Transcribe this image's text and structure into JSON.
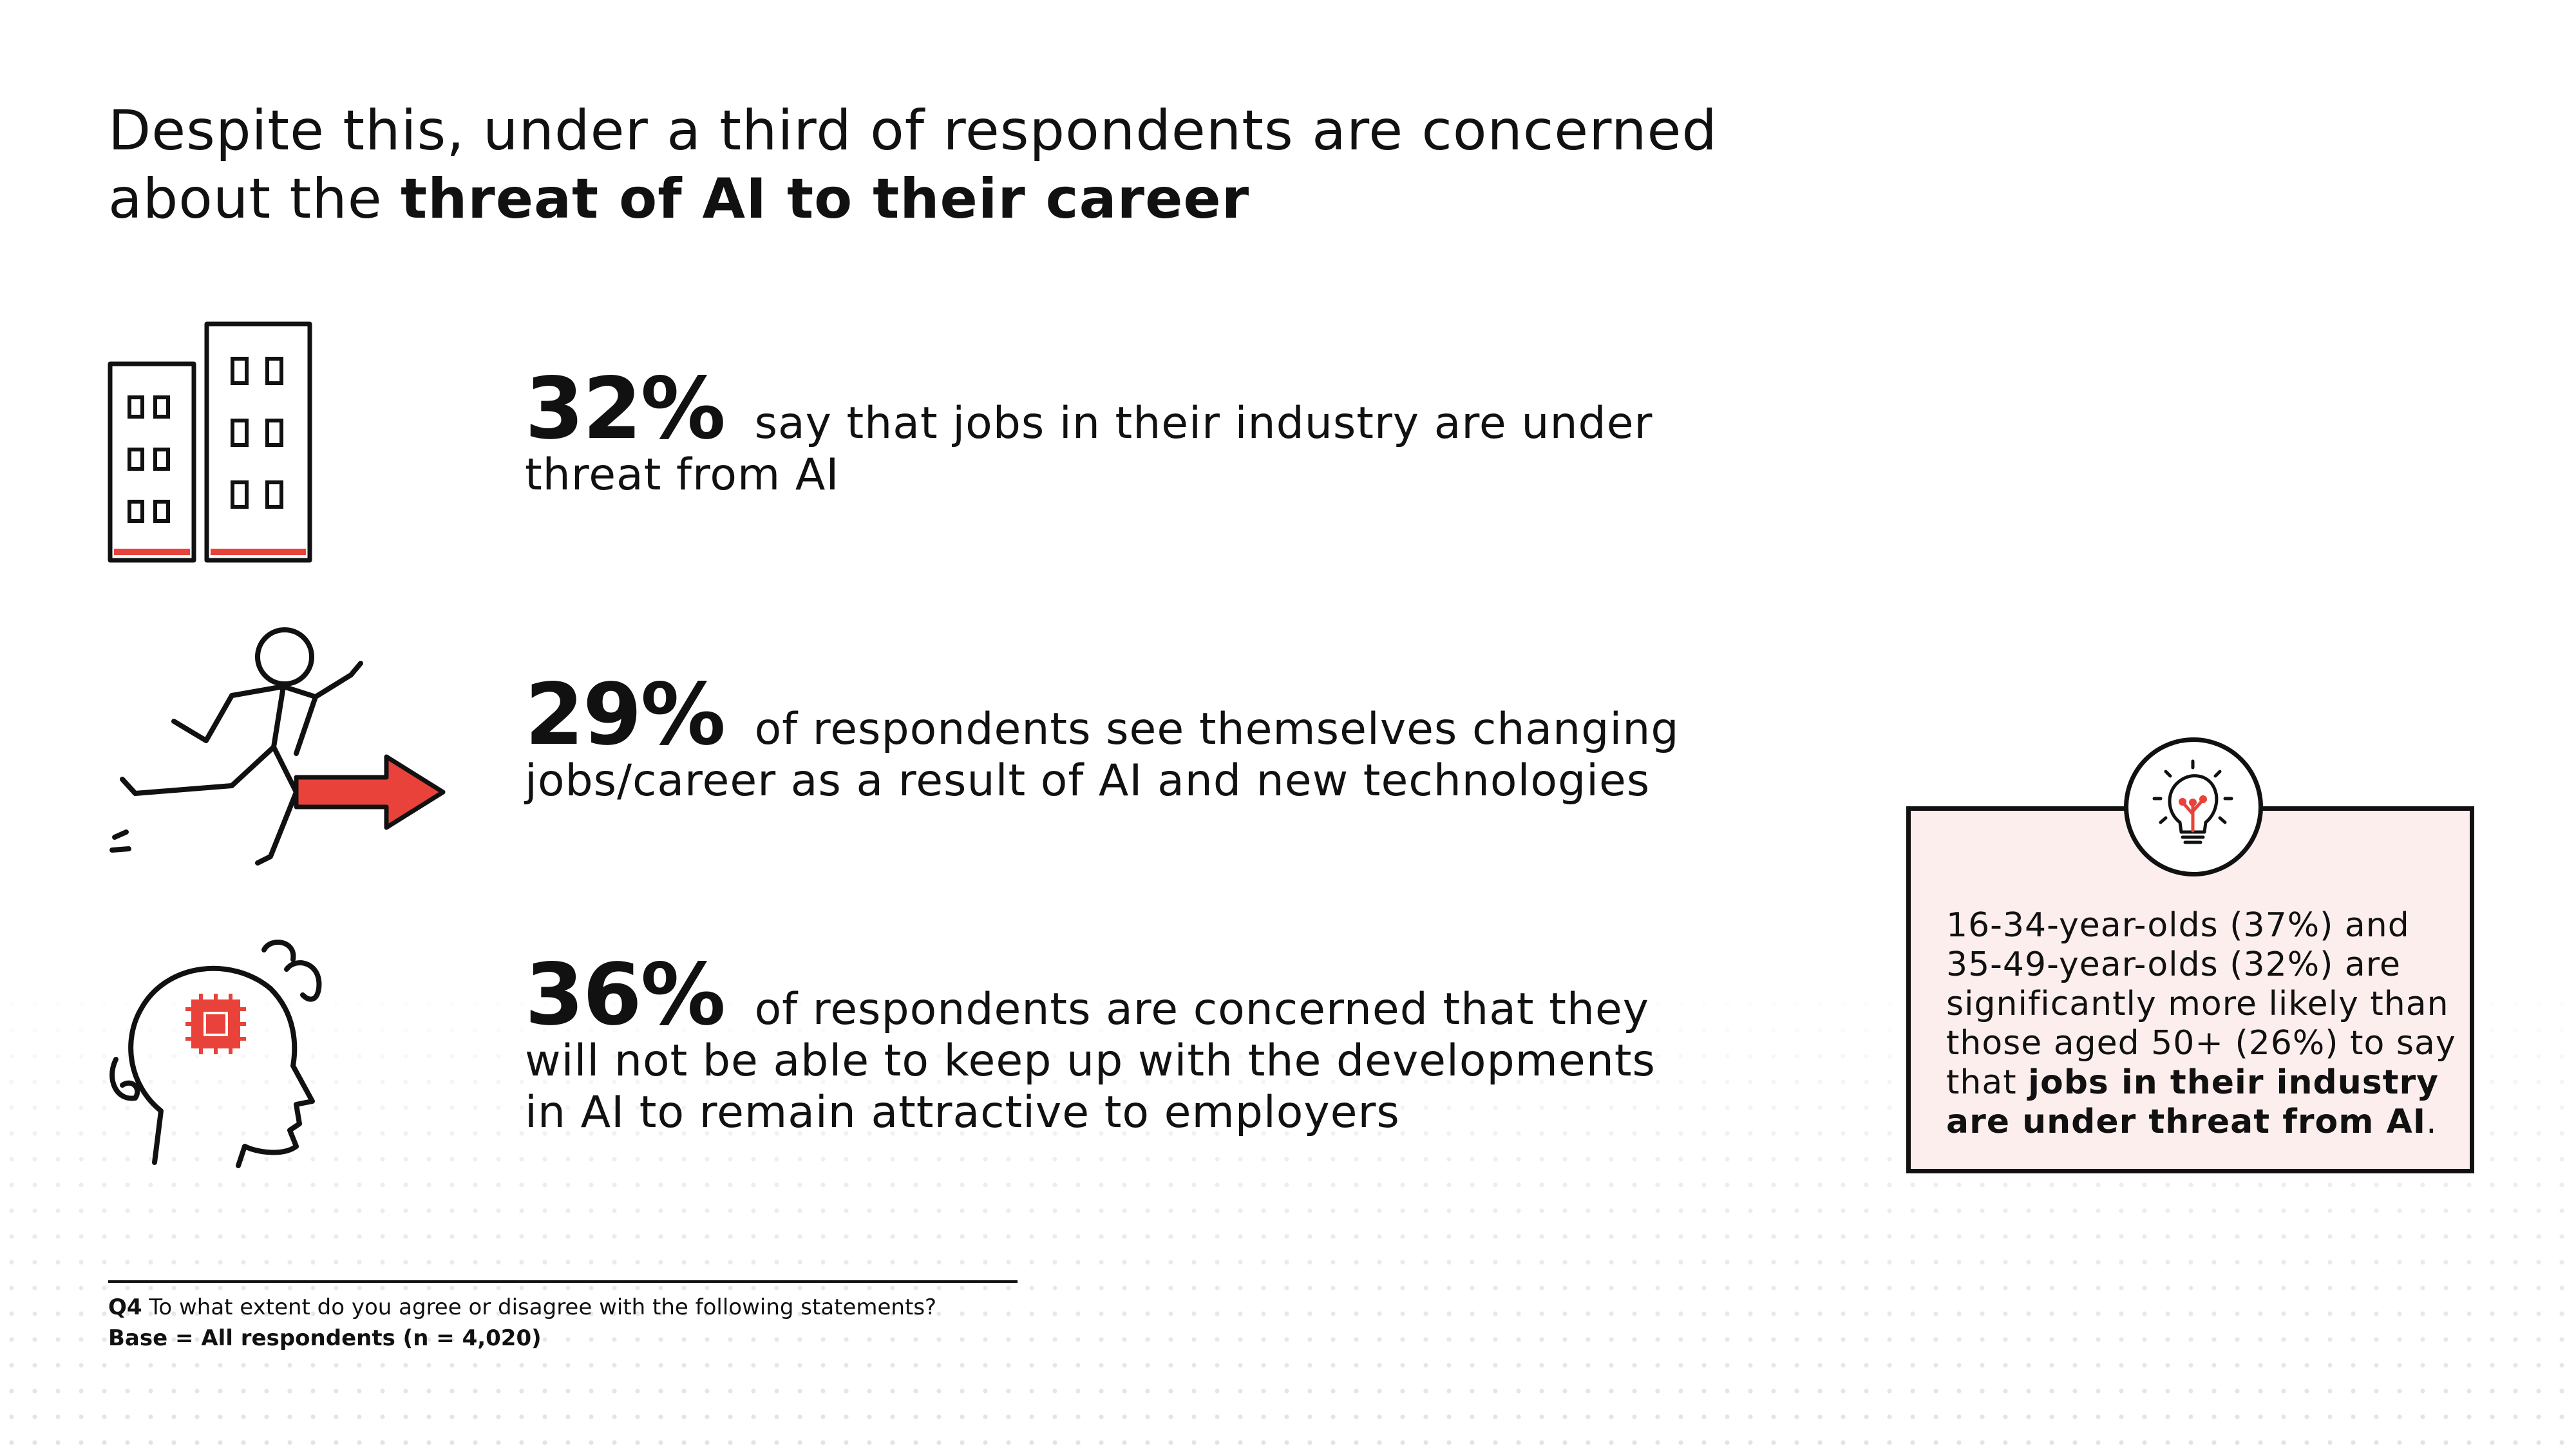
{
  "title": {
    "line1": "Despite this, under a third of respondents are concerned",
    "line2_prefix": "about the ",
    "line2_bold": "threat of AI to their career"
  },
  "stats": [
    {
      "percent": "32%",
      "text": " say that jobs in their industry are under threat from AI",
      "icon": "buildings-icon"
    },
    {
      "percent": "29%",
      "text": " of respondents see themselves changing jobs/career as a result of AI and new technologies",
      "icon": "running-person-arrow-icon"
    },
    {
      "percent": "36%",
      "text": " of respondents are concerned that they will not be able to keep up with the developments in AI to remain attractive to employers",
      "icon": "head-chip-icon"
    }
  ],
  "callout": {
    "icon": "lightbulb-icon",
    "text": "16-34-year-olds (37%) and 35-49-year-olds (32%) are significantly more likely than those aged 50+ (26%) to say that ",
    "bold": "jobs in their industry are under threat from AI",
    "end": "."
  },
  "footnote": {
    "q_label": "Q4",
    "q_text": " To what extent do you agree or disagree with the following statements?",
    "base": "Base = All respondents (n = 4,020)"
  },
  "colors": {
    "accent_red": "#e8423a",
    "callout_bg": "#fdeeee",
    "text": "#111111"
  }
}
